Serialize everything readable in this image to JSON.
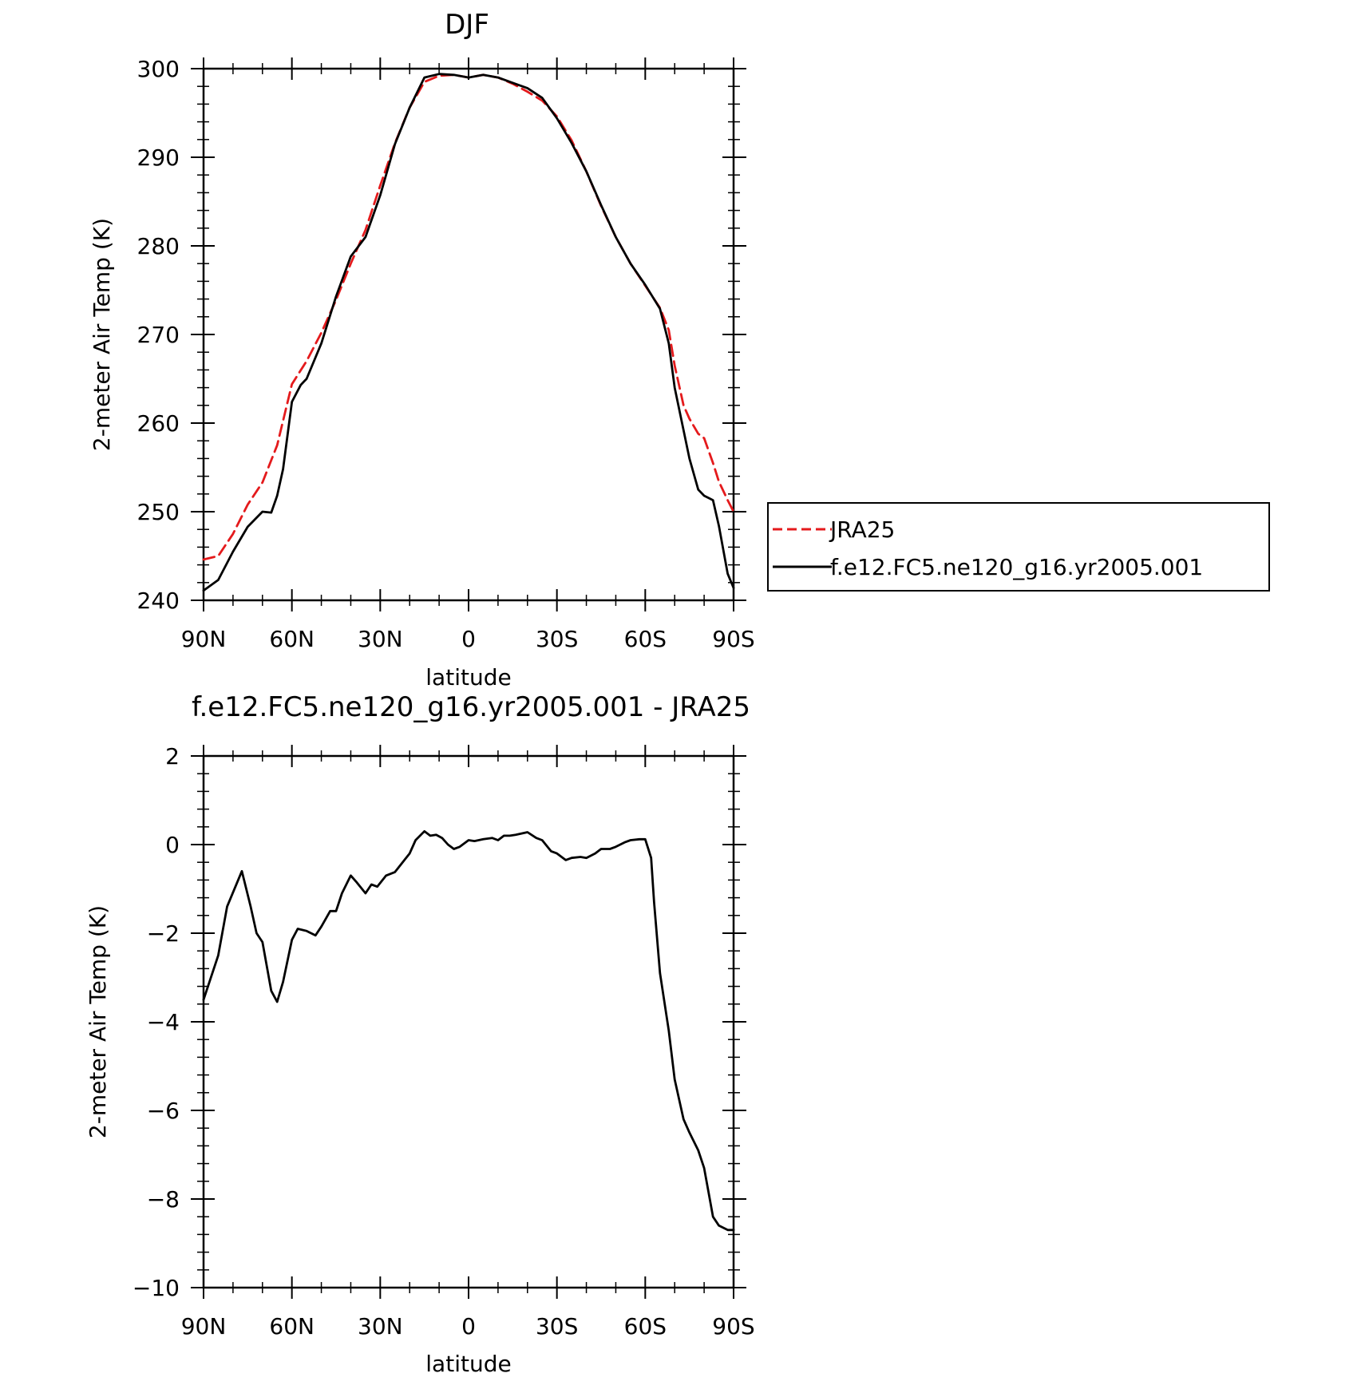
{
  "colors": {
    "jra": "#e41a1c",
    "model": "#000000"
  },
  "chart_data": [
    {
      "type": "line",
      "title": "DJF",
      "xlabel": "latitude",
      "ylabel": "2-meter Air Temp (K)",
      "xlim": [
        -90,
        90
      ],
      "ylim": [
        240,
        300
      ],
      "x_ticks": [
        -90,
        -60,
        -30,
        0,
        30,
        60,
        90
      ],
      "x_tick_labels": [
        "90N",
        "60N",
        "30N",
        "0",
        "30S",
        "60S",
        "90S"
      ],
      "y_ticks": [
        240,
        250,
        260,
        270,
        280,
        290,
        300
      ],
      "y_tick_labels": [
        "240",
        "250",
        "260",
        "270",
        "280",
        "290",
        "300"
      ],
      "legend_position": "right",
      "series": [
        {
          "name": "JRA25",
          "style": "dashed",
          "color": "#e41a1c",
          "x": [
            -90,
            -85,
            -80,
            -75,
            -70,
            -65,
            -60,
            -55,
            -50,
            -45,
            -40,
            -35,
            -30,
            -25,
            -20,
            -15,
            -10,
            -5,
            0,
            5,
            10,
            15,
            20,
            25,
            30,
            35,
            40,
            45,
            50,
            55,
            60,
            65,
            68,
            70,
            73,
            75,
            78,
            80,
            83,
            85,
            88,
            90
          ],
          "y": [
            244.6,
            245.0,
            247.5,
            250.8,
            253.3,
            257.5,
            264.4,
            267.0,
            270.2,
            273.9,
            278.0,
            281.8,
            286.8,
            291.6,
            295.6,
            298.5,
            299.2,
            299.3,
            299.0,
            299.3,
            299.0,
            298.3,
            297.4,
            296.4,
            294.6,
            291.9,
            288.4,
            284.5,
            281.0,
            278.0,
            275.5,
            273.0,
            270.5,
            266.5,
            262.0,
            260.5,
            258.8,
            258.3,
            255.5,
            253.4,
            251.3,
            250.0
          ]
        },
        {
          "name": "f.e12.FC5.ne120_g16.yr2005.001",
          "style": "solid",
          "color": "#000000",
          "x": [
            -90,
            -85,
            -80,
            -75,
            -70,
            -67,
            -65,
            -63,
            -60,
            -57,
            -55,
            -50,
            -45,
            -40,
            -35,
            -30,
            -25,
            -20,
            -15,
            -10,
            -5,
            0,
            5,
            10,
            15,
            20,
            25,
            30,
            35,
            40,
            45,
            50,
            55,
            60,
            65,
            68,
            70,
            73,
            75,
            78,
            80,
            83,
            85,
            88,
            90
          ],
          "y": [
            241.1,
            242.3,
            245.5,
            248.3,
            250.0,
            249.9,
            251.8,
            254.8,
            262.4,
            264.3,
            265.0,
            269.0,
            274.3,
            278.8,
            281.0,
            285.7,
            291.5,
            295.6,
            299.0,
            299.4,
            299.3,
            299.0,
            299.3,
            299.0,
            298.4,
            297.8,
            296.7,
            294.4,
            291.6,
            288.4,
            284.6,
            281.0,
            278.0,
            275.6,
            272.9,
            269.0,
            264.0,
            259.2,
            256.0,
            252.5,
            251.8,
            251.3,
            248.4,
            243.0,
            241.4
          ]
        }
      ]
    },
    {
      "type": "line",
      "title": "f.e12.FC5.ne120_g16.yr2005.001 - JRA25",
      "xlabel": "latitude",
      "ylabel": "2-meter Air Temp (K)",
      "xlim": [
        -90,
        90
      ],
      "ylim": [
        -10,
        2
      ],
      "x_ticks": [
        -90,
        -60,
        -30,
        0,
        30,
        60,
        90
      ],
      "x_tick_labels": [
        "90N",
        "60N",
        "30N",
        "0",
        "30S",
        "60S",
        "90S"
      ],
      "y_ticks": [
        -10,
        -8,
        -6,
        -4,
        -2,
        0,
        2
      ],
      "y_tick_labels": [
        "−10",
        "−8",
        "−6",
        "−4",
        "−2",
        "0",
        "2"
      ],
      "series": [
        {
          "style": "solid",
          "color": "#000000",
          "x": [
            -90,
            -85,
            -82,
            -77,
            -74,
            -72,
            -70,
            -67,
            -65,
            -63,
            -60,
            -58,
            -55,
            -52,
            -50,
            -47,
            -45,
            -43,
            -40,
            -38,
            -35,
            -33,
            -31,
            -28,
            -25,
            -23,
            -20,
            -18,
            -15,
            -13,
            -11,
            -9,
            -7,
            -5,
            -3,
            0,
            2,
            5,
            8,
            10,
            12,
            14,
            16,
            18,
            20,
            23,
            25,
            28,
            30,
            33,
            35,
            38,
            40,
            43,
            45,
            48,
            50,
            53,
            55,
            58,
            60,
            62,
            63,
            65,
            68,
            70,
            73,
            75,
            78,
            80,
            83,
            85,
            88,
            90
          ],
          "y": [
            -3.5,
            -2.5,
            -1.4,
            -0.6,
            -1.4,
            -2.0,
            -2.2,
            -3.3,
            -3.55,
            -3.1,
            -2.15,
            -1.9,
            -1.95,
            -2.05,
            -1.85,
            -1.5,
            -1.5,
            -1.1,
            -0.7,
            -0.85,
            -1.1,
            -0.9,
            -0.95,
            -0.7,
            -0.62,
            -0.45,
            -0.2,
            0.1,
            0.3,
            0.2,
            0.22,
            0.15,
            0.0,
            -0.1,
            -0.05,
            0.1,
            0.08,
            0.12,
            0.15,
            0.1,
            0.2,
            0.2,
            0.22,
            0.25,
            0.28,
            0.15,
            0.1,
            -0.15,
            -0.2,
            -0.35,
            -0.3,
            -0.28,
            -0.3,
            -0.2,
            -0.1,
            -0.1,
            -0.05,
            0.05,
            0.1,
            0.12,
            0.12,
            -0.3,
            -1.3,
            -2.9,
            -4.2,
            -5.3,
            -6.2,
            -6.5,
            -6.9,
            -7.3,
            -8.4,
            -8.6,
            -8.7,
            -8.7
          ]
        }
      ]
    }
  ]
}
